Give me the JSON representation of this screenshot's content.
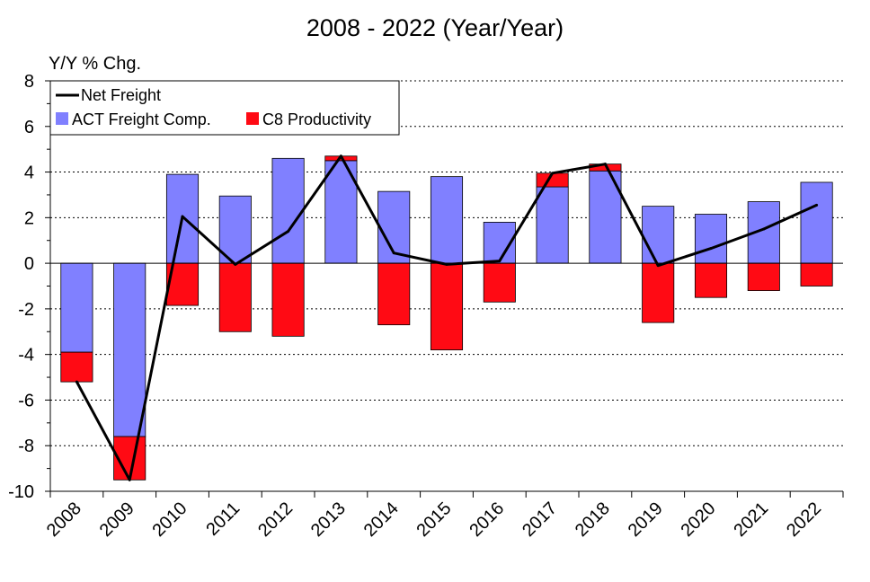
{
  "chart_data": {
    "type": "bar",
    "title": "2008 - 2022 (Year/Year)",
    "ylabel": "Y/Y % Chg.",
    "xlabel": "",
    "ylim": [
      -10,
      8
    ],
    "yticks": [
      8,
      6,
      4,
      2,
      0,
      -2,
      -4,
      -6,
      -8,
      -10
    ],
    "ytick_labels": [
      "8",
      "6",
      "4",
      "2",
      "0",
      "-2",
      "-4",
      "-6",
      "-8",
      "-10"
    ],
    "grid": true,
    "stacked": true,
    "legend_position": "top-left",
    "categories": [
      "2008",
      "2009",
      "2010",
      "2011",
      "2012",
      "2013",
      "2014",
      "2015",
      "2016",
      "2017",
      "2018",
      "2019",
      "2020",
      "2021",
      "2022"
    ],
    "series": [
      {
        "name": "ACT Freight Comp.",
        "kind": "bar",
        "color": "#8080ff",
        "values": [
          -3.9,
          -7.6,
          3.9,
          2.95,
          4.6,
          4.5,
          3.15,
          3.8,
          1.8,
          3.35,
          4.05,
          2.5,
          2.15,
          2.7,
          3.55
        ]
      },
      {
        "name": "C8 Productivity",
        "kind": "bar",
        "color": "#ff0a14",
        "values": [
          -1.3,
          -1.9,
          -1.85,
          -3.0,
          -3.2,
          0.2,
          -2.7,
          -3.8,
          -1.7,
          0.6,
          0.3,
          -2.6,
          -1.5,
          -1.2,
          -1.0
        ]
      },
      {
        "name": "Net Freight",
        "kind": "line",
        "color": "#000000",
        "values": [
          -5.2,
          -9.5,
          2.05,
          -0.05,
          1.4,
          4.7,
          0.45,
          -0.05,
          0.1,
          3.95,
          4.35,
          -0.1,
          0.65,
          1.5,
          2.55
        ]
      }
    ]
  }
}
